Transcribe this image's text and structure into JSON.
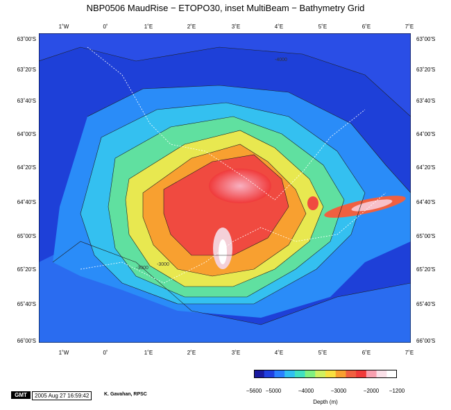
{
  "title": "NBP0506 MaudRise − ETOPO30, inset MultiBeam − Bathymetry Grid",
  "longitude_ticks": [
    "1˚W",
    "0˚",
    "1˚E",
    "2˚E",
    "3˚E",
    "4˚E",
    "5˚E",
    "6˚E",
    "7˚E"
  ],
  "latitude_ticks": [
    "63˚00'S",
    "63˚20'S",
    "63˚40'S",
    "64˚00'S",
    "64˚20'S",
    "64˚40'S",
    "65˚00'S",
    "65˚20'S",
    "65˚40'S",
    "66˚00'S"
  ],
  "contour_labels": [
    "-3000",
    "-3000",
    "-4000"
  ],
  "colorbar": {
    "ticks": [
      "−5600",
      "−5000",
      "−4000",
      "−3000",
      "−2000",
      "−1200"
    ],
    "tick_values": [
      -5600,
      -5000,
      -4000,
      -3000,
      -2000,
      -1200
    ],
    "range": [
      -5600,
      -1200
    ],
    "label": "Depth (m)",
    "colors": [
      "#1a1aa0",
      "#2040e0",
      "#2a80ff",
      "#30c0f0",
      "#40e0c0",
      "#80f080",
      "#d0f060",
      "#f8e040",
      "#f8a030",
      "#f06040",
      "#f03a3a",
      "#f8a0b0",
      "#fae0e8",
      "#ffffff"
    ]
  },
  "footer": {
    "badge": "GMT",
    "timestamp": "2005 Aug 27 16:59:42",
    "author": "K. Gavahan, RPSC"
  }
}
